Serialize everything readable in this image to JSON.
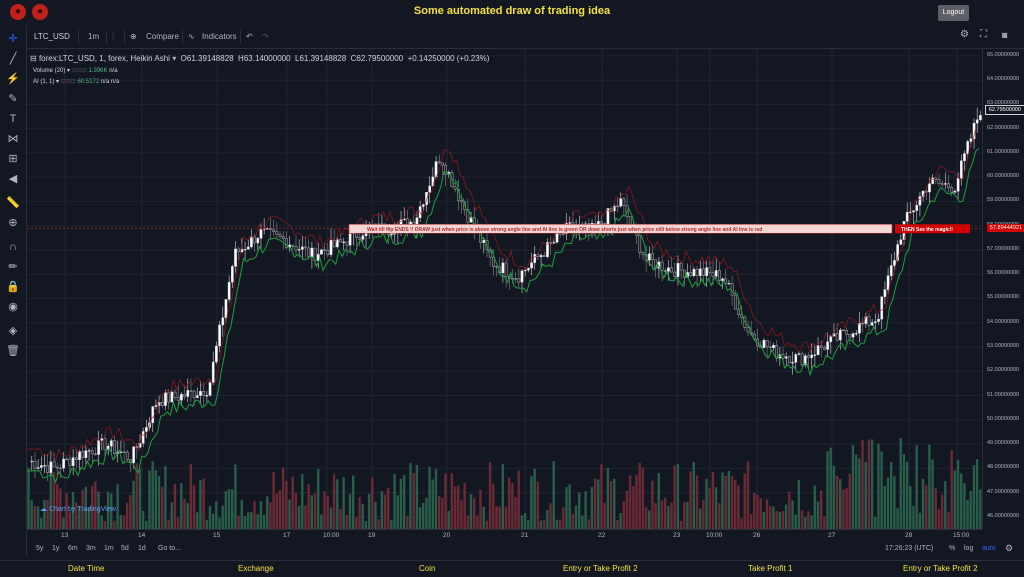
{
  "header": {
    "title": "Some automated draw of trading idea",
    "logout_label": "Logout"
  },
  "toolbar": {
    "symbol": "LTC_USD",
    "interval": "1m",
    "compare_label": "Compare",
    "indicators_label": "Indicators"
  },
  "legend": {
    "symbol_desc": "forex:LTC_USD, 1, forex, Heikin Ashi",
    "open": "O61.39148828",
    "high": "H63.14000000",
    "low": "L61.39148828",
    "close": "C62.79500000",
    "change": "+0.14250000 (+0.23%)",
    "volume_label": "Volume (20)",
    "volume_value": "1.396K",
    "volume_na": "n/a",
    "ai_label": "AI (1, 1)",
    "ai_value": "60.5172",
    "ai_na1": "n/a",
    "ai_na2": "n/a"
  },
  "annotation": {
    "text1": "Wait till flip ENDS !!    DRAW just when   price is above strong angle line and AI line is green         OR        draw shorts just when price still below strong angle line and AI line is red",
    "text2": "THEN See the magic!!"
  },
  "price_axis": {
    "ticks": [
      "65.00000000",
      "64.00000000",
      "63.00000000",
      "62.00000000",
      "61.00000000",
      "60.00000000",
      "59.00000000",
      "58.00000000",
      "57.00000000",
      "56.00000000",
      "55.00000000",
      "54.00000000",
      "53.00000000",
      "52.00000000",
      "51.00000000",
      "50.00000000",
      "49.00000000",
      "48.00000000",
      "47.00000000",
      "46.00000000"
    ],
    "current_price": "62.79500000",
    "line_price": "57.89444921"
  },
  "time_axis": {
    "ticks": [
      "13",
      "14",
      "15",
      "17",
      "10:00",
      "19",
      "20",
      "21",
      "22",
      "23",
      "10:00",
      "26",
      "27",
      "28",
      "15:00"
    ]
  },
  "bottom": {
    "ranges": [
      "5y",
      "1y",
      "6m",
      "3m",
      "1m",
      "5d",
      "1d"
    ],
    "goto": "Go to...",
    "clock": "17:26:23 (UTC)",
    "percent": "%",
    "log": "log",
    "auto": "auto",
    "watermark": "Chart by TradingView"
  },
  "footer": {
    "cols": [
      "Date Time",
      "Exchange",
      "Coin",
      "Entry or Take Profit 2",
      "Take Profit 1",
      "Entry or Take Profit 2"
    ]
  },
  "colors": {
    "up": "#53b987",
    "down": "#eb4d5c",
    "accent": "#2962ff",
    "title": "#f5e23c"
  },
  "chart_data": {
    "type": "candlestick",
    "style": "Heikin Ashi",
    "symbol": "LTC_USD",
    "ylim": [
      45.5,
      65.2
    ],
    "xlabels": [
      "13",
      "14",
      "15",
      "17",
      "10:00",
      "19",
      "20",
      "21",
      "22",
      "23",
      "10:00",
      "26",
      "27",
      "28",
      "15:00"
    ],
    "approx_closes": [
      48.3,
      48.0,
      48.6,
      49.0,
      48.4,
      50.8,
      51.0,
      51.3,
      56.8,
      57.7,
      57.4,
      56.8,
      57.2,
      57.8,
      57.9,
      58.2,
      60.9,
      58.6,
      56.5,
      55.9,
      56.9,
      57.9,
      57.8,
      59.0,
      56.6,
      56.2,
      56.1,
      55.9,
      53.6,
      52.8,
      52.5,
      53.1,
      53.7,
      54.2,
      58.0,
      59.8,
      59.6,
      62.8
    ]
  }
}
